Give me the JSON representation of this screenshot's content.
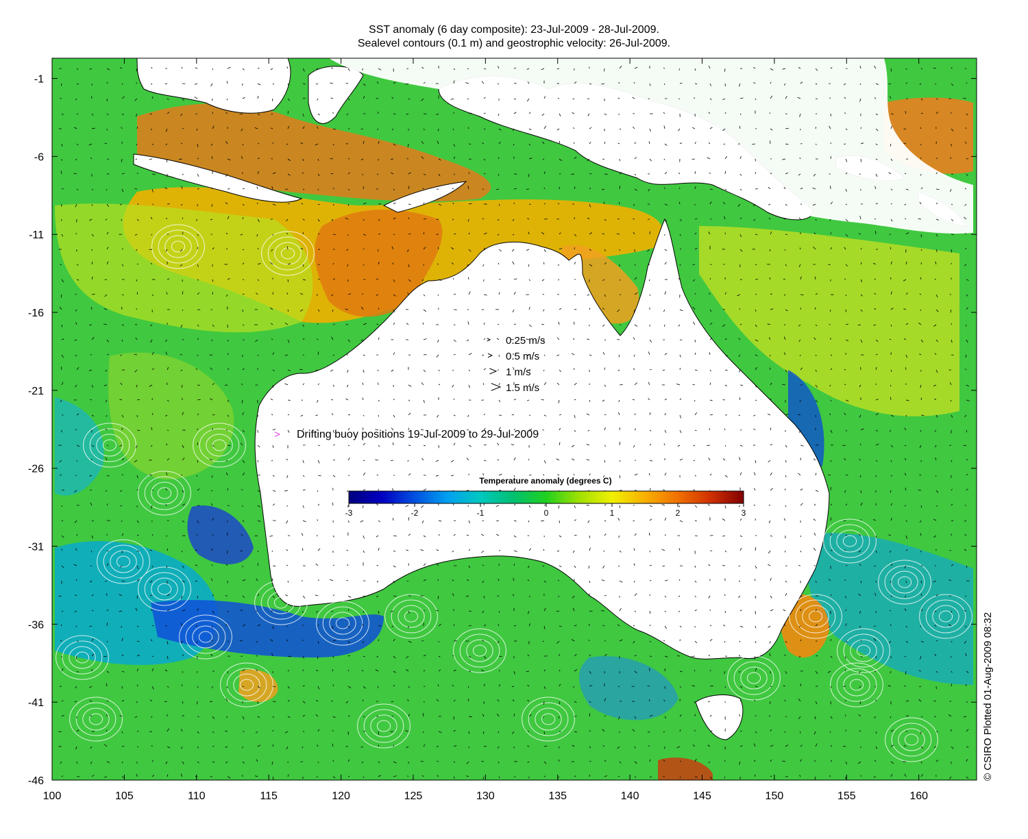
{
  "title_line1": "SST anomaly (6 day composite): 23-Jul-2009 - 28-Jul-2009.",
  "title_line2": "Sealevel contours (0.1 m) and geostrophic velocity: 26-Jul-2009.",
  "x_axis": {
    "min": 100,
    "max": 164,
    "ticks": [
      "100",
      "105",
      "110",
      "115",
      "120",
      "125",
      "130",
      "135",
      "140",
      "145",
      "150",
      "155",
      "160"
    ],
    "tick_values": [
      100,
      105,
      110,
      115,
      120,
      125,
      130,
      135,
      140,
      145,
      150,
      155,
      160
    ]
  },
  "y_axis": {
    "min": -46,
    "max": 0.3,
    "ticks": [
      "-1",
      "-6",
      "-11",
      "-16",
      "-21",
      "-26",
      "-31",
      "-36",
      "-41",
      "-46"
    ],
    "tick_values": [
      -1,
      -6,
      -11,
      -16,
      -21,
      -26,
      -31,
      -36,
      -41,
      -46
    ]
  },
  "velocity_legend": [
    {
      "label": "0.25 m/s",
      "speed": 0.25
    },
    {
      "label": "0.5 m/s",
      "speed": 0.5
    },
    {
      "label": "1 m/s",
      "speed": 1
    },
    {
      "label": "1.5 m/s",
      "speed": 1.5
    }
  ],
  "buoy_legend": {
    "symbol": ">",
    "label": "Drifting buoy positions 19-Jul-2009 to 29-Jul-2009",
    "color": "#e040e0"
  },
  "colorbar": {
    "title": "Temperature anomaly (degrees C)",
    "min": -3,
    "max": 3,
    "ticks": [
      "-3",
      "-2",
      "-1",
      "0",
      "1",
      "2",
      "3"
    ],
    "tick_values": [
      -3,
      -2,
      -1,
      0,
      1,
      2,
      3
    ],
    "colors": [
      "#000080",
      "#0000c0",
      "#0050e0",
      "#00a0f0",
      "#00c8c0",
      "#00c070",
      "#20d020",
      "#a0e000",
      "#f0f000",
      "#f8b000",
      "#f07000",
      "#d03000",
      "#800000"
    ]
  },
  "credit": "© CSIRO Plotted 01-Aug-2009 08:32",
  "land_color": "#ffffff",
  "coast_color": "#000000"
}
